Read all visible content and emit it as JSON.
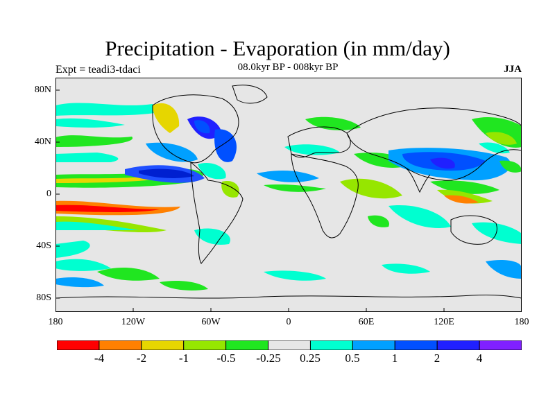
{
  "header": {
    "title": "Precipitation - Evaporation (in mm/day)",
    "subtitle": "08.0kyr BP - 008kyr BP",
    "experiment": "Expt = teadi3-tdaci",
    "season": "JJA"
  },
  "map": {
    "lat_labels": [
      "80N",
      "40N",
      "0",
      "40S",
      "80S"
    ],
    "lon_labels": [
      "180",
      "120W",
      "60W",
      "0",
      "60E",
      "120E",
      "180"
    ],
    "background_color": "#e6e6e6"
  },
  "colorbar": {
    "colors": [
      "#ff0000",
      "#ff8000",
      "#e6d600",
      "#96e600",
      "#20e620",
      "#e6e6e6",
      "#00ffd0",
      "#00a0ff",
      "#0050ff",
      "#2020ff",
      "#8020ff"
    ],
    "labels": [
      "-4",
      "-2",
      "-1",
      "-0.5",
      "-0.25",
      "0.25",
      "0.5",
      "1",
      "2",
      "4"
    ]
  }
}
